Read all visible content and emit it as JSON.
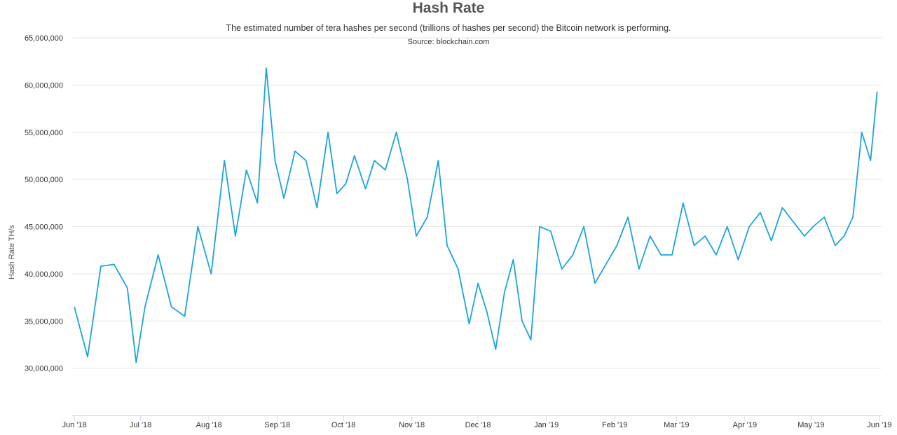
{
  "chart_data": {
    "type": "line",
    "title": "Hash Rate",
    "subtitle": "The estimated number of tera hashes per second (trillions of hashes per second) the Bitcoin network is performing.",
    "source": "Source: blockchain.com",
    "ylabel": "Hash Rate TH/s",
    "xlabel": "",
    "ylim": [
      25000000,
      65000000
    ],
    "yticks": [
      30000000,
      35000000,
      40000000,
      45000000,
      50000000,
      55000000,
      60000000,
      65000000
    ],
    "ytick_labels": [
      "30,000,000",
      "35,000,000",
      "40,000,000",
      "45,000,000",
      "50,000,000",
      "55,000,000",
      "60,000,000",
      "65,000,000"
    ],
    "x_range": [
      "2018-05-31",
      "2019-06-02"
    ],
    "xticks": [
      "2018-06-01",
      "2018-07-01",
      "2018-08-01",
      "2018-09-01",
      "2018-10-01",
      "2018-11-01",
      "2018-12-01",
      "2019-01-01",
      "2019-02-01",
      "2019-03-01",
      "2019-04-01",
      "2019-05-01",
      "2019-06-01"
    ],
    "xtick_labels": [
      "Jun '18",
      "Jul '18",
      "Aug '18",
      "Sep '18",
      "Oct '18",
      "Nov '18",
      "Dec '18",
      "Jan '19",
      "Feb '19",
      "Mar '19",
      "Apr '19",
      "May '19",
      "Jun '19"
    ],
    "grid": true,
    "legend": "none",
    "color": "#1ca5d8",
    "series": [
      {
        "x": [
          "2018-06-01",
          "2018-06-07",
          "2018-06-13",
          "2018-06-19",
          "2018-06-25",
          "2018-06-29",
          "2018-07-03",
          "2018-07-09",
          "2018-07-15",
          "2018-07-21",
          "2018-07-27",
          "2018-08-02",
          "2018-08-08",
          "2018-08-13",
          "2018-08-18",
          "2018-08-23",
          "2018-08-27",
          "2018-08-31",
          "2018-09-04",
          "2018-09-09",
          "2018-09-14",
          "2018-09-19",
          "2018-09-24",
          "2018-09-28",
          "2018-10-02",
          "2018-10-06",
          "2018-10-11",
          "2018-10-15",
          "2018-10-20",
          "2018-10-25",
          "2018-10-30",
          "2018-11-03",
          "2018-11-08",
          "2018-11-13",
          "2018-11-17",
          "2018-11-22",
          "2018-11-27",
          "2018-12-01",
          "2018-12-05",
          "2018-12-09",
          "2018-12-13",
          "2018-12-17",
          "2018-12-21",
          "2018-12-25",
          "2018-12-29",
          "2019-01-03",
          "2019-01-08",
          "2019-01-13",
          "2019-01-18",
          "2019-01-23",
          "2019-01-28",
          "2019-02-02",
          "2019-02-07",
          "2019-02-12",
          "2019-02-17",
          "2019-02-22",
          "2019-02-27",
          "2019-03-04",
          "2019-03-09",
          "2019-03-14",
          "2019-03-19",
          "2019-03-24",
          "2019-03-29",
          "2019-04-03",
          "2019-04-08",
          "2019-04-13",
          "2019-04-18",
          "2019-04-23",
          "2019-04-28",
          "2019-05-02",
          "2019-05-07",
          "2019-05-12",
          "2019-05-16",
          "2019-05-20",
          "2019-05-24",
          "2019-05-28",
          "2019-05-31"
        ],
        "values": [
          36500000,
          31200000,
          40800000,
          41000000,
          38500000,
          30600000,
          36500000,
          42000000,
          36500000,
          35500000,
          45000000,
          40000000,
          52000000,
          44000000,
          51000000,
          47500000,
          61800000,
          52000000,
          48000000,
          53000000,
          52000000,
          47000000,
          55000000,
          48500000,
          49500000,
          52500000,
          49000000,
          52000000,
          51000000,
          55000000,
          50000000,
          44000000,
          46000000,
          52000000,
          43000000,
          40500000,
          34700000,
          39000000,
          36000000,
          32000000,
          38000000,
          41500000,
          35000000,
          33000000,
          45000000,
          44500000,
          40500000,
          42000000,
          45000000,
          39000000,
          41000000,
          43000000,
          46000000,
          40500000,
          44000000,
          42000000,
          42000000,
          47500000,
          43000000,
          44000000,
          42000000,
          45000000,
          41500000,
          45000000,
          46500000,
          43500000,
          47000000,
          45500000,
          44000000,
          45000000,
          46000000,
          43000000,
          44000000,
          46000000,
          55000000,
          52000000,
          59300000
        ]
      }
    ]
  }
}
